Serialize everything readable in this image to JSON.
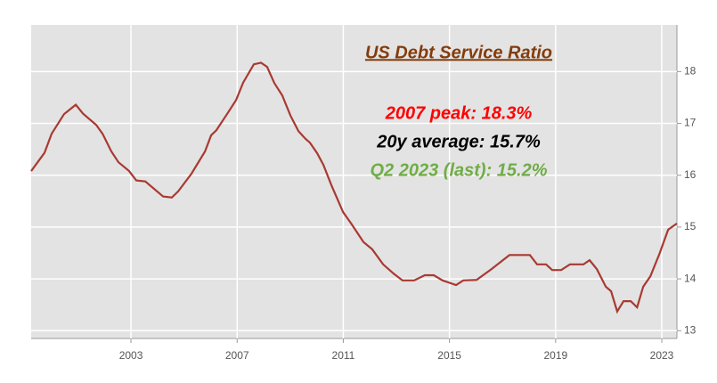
{
  "chart_data": {
    "type": "line",
    "title": "US Debt Service Ratio",
    "annotations": [
      {
        "text": "2007 peak: 18.3%",
        "color": "#ff0000"
      },
      {
        "text": "20y average: 15.7%",
        "color": "#000000"
      },
      {
        "text": "Q2 2023 (last): 15.2%",
        "color": "#70ad47"
      }
    ],
    "x": [
      1999.24,
      1999.74,
      2000.01,
      2000.48,
      2000.92,
      2001.19,
      2001.69,
      2001.93,
      2002.26,
      2002.53,
      2002.93,
      2003.2,
      2003.54,
      2004.21,
      2004.54,
      2004.78,
      2005.28,
      2005.79,
      2006.02,
      2006.22,
      2006.62,
      2006.96,
      2007.23,
      2007.63,
      2007.9,
      2008.13,
      2008.4,
      2008.7,
      2009.01,
      2009.31,
      2009.58,
      2009.74,
      2010.01,
      2010.25,
      2010.55,
      2010.99,
      2011.32,
      2011.76,
      2012.09,
      2012.5,
      2012.9,
      2013.23,
      2013.67,
      2014.07,
      2014.41,
      2014.74,
      2015.25,
      2015.52,
      2016.02,
      2016.59,
      2017.26,
      2018.03,
      2018.3,
      2018.64,
      2018.87,
      2019.21,
      2019.54,
      2020.05,
      2020.28,
      2020.55,
      2020.89,
      2021.09,
      2021.32,
      2021.56,
      2021.83,
      2022.07,
      2022.3,
      2022.57,
      2022.91,
      2023.24,
      2023.57
    ],
    "series": [
      {
        "name": "Debt Service Ratio",
        "color": "#a83a32",
        "values": [
          16.08,
          16.43,
          16.8,
          17.18,
          17.36,
          17.19,
          16.97,
          16.8,
          16.46,
          16.25,
          16.08,
          15.9,
          15.88,
          15.59,
          15.57,
          15.69,
          16.03,
          16.46,
          16.77,
          16.87,
          17.18,
          17.45,
          17.79,
          18.14,
          18.17,
          18.09,
          17.78,
          17.54,
          17.15,
          16.85,
          16.7,
          16.63,
          16.43,
          16.2,
          15.81,
          15.29,
          15.05,
          14.71,
          14.57,
          14.28,
          14.1,
          13.97,
          13.97,
          14.07,
          14.07,
          13.97,
          13.88,
          13.97,
          13.98,
          14.19,
          14.46,
          14.46,
          14.28,
          14.28,
          14.17,
          14.17,
          14.28,
          14.28,
          14.36,
          14.19,
          13.85,
          13.76,
          13.37,
          13.57,
          13.57,
          13.45,
          13.85,
          14.05,
          14.48,
          14.95,
          15.07
        ]
      }
    ],
    "xlim": [
      1999.24,
      2023.57
    ],
    "xticks": [
      2003,
      2007,
      2011,
      2015,
      2019,
      2023
    ],
    "ylim": [
      12.85,
      18.9
    ],
    "yticks": [
      13,
      14,
      15,
      16,
      17,
      18
    ],
    "grid": true
  }
}
